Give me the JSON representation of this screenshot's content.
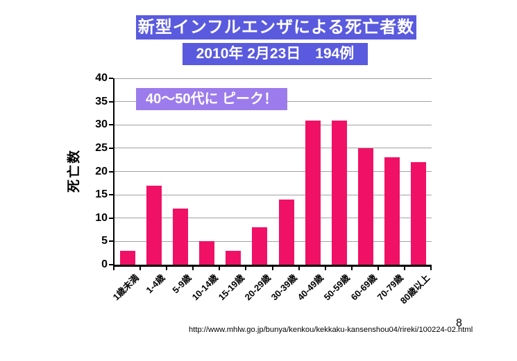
{
  "slide": {
    "title": "新型インフルエンザによる死亡者数",
    "subtitle": "2010年 2月23日　194例",
    "annotation": "40～50代に ピーク！",
    "footer_url": "http://www.mhlw.go.jp/bunya/kenkou/kekkaku-kansenshou04/rireki/100224-02.html",
    "page_number": "8"
  },
  "colors": {
    "banner_bg": "#5a5ade",
    "banner_text": "#ffffff",
    "annotation_bg": "#9c7cec",
    "annotation_text": "#ffffff",
    "bar": "#f01166",
    "gridline": "#a0a0a0",
    "axis": "#000000",
    "background": "#ffffff"
  },
  "chart_data": {
    "type": "bar",
    "title": "新型インフルエンザによる死亡者数",
    "subtitle": "2010年 2月23日　194例",
    "categories": [
      "1歳未満",
      "1-4歳",
      "5-9歳",
      "10-14歳",
      "15-19歳",
      "20-29歳",
      "30-39歳",
      "40-49歳",
      "50-59歳",
      "60-69歳",
      "70-79歳",
      "80歳以上"
    ],
    "values": [
      3,
      17,
      12,
      5,
      3,
      8,
      14,
      31,
      31,
      25,
      23,
      22
    ],
    "total_label": "194例",
    "xlabel": "",
    "ylabel": "死亡数",
    "ylim": [
      0,
      40
    ],
    "ytick_step": 5,
    "grid": true,
    "legend": false,
    "annotation": "40～50代に ピーク！",
    "source": "http://www.mhlw.go.jp/bunya/kenkou/kekkaku-kansenshou04/rireki/100224-02.html"
  }
}
